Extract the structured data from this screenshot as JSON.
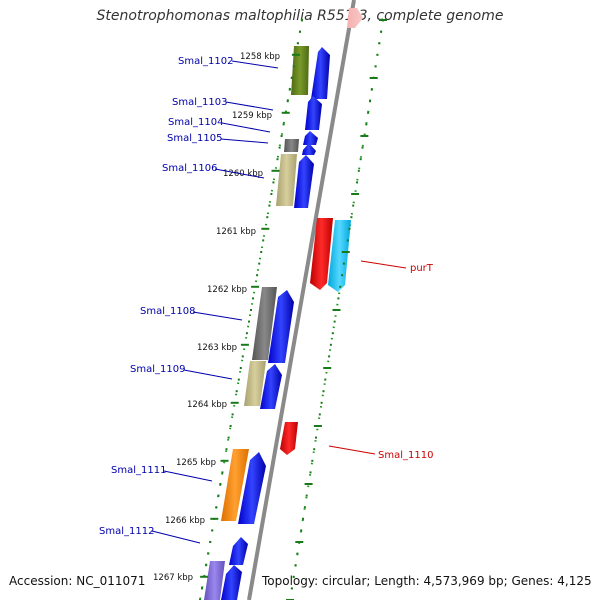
{
  "title": "Stenotrophomonas maltophilia R551-3, complete genome",
  "footer": {
    "accession": "Accession: NC_011071",
    "topology": "Topology: circular; Length: 4,573,969 bp; Genes: 4,125"
  },
  "colors": {
    "backbone": "#8a8a8a",
    "tick": "#1a7a1a",
    "left_label": "#0000aa",
    "right_label": "#cc0000"
  },
  "ticks": [
    "1258 kbp",
    "1259 kbp",
    "1260 kbp",
    "1261 kbp",
    "1262 kbp",
    "1263 kbp",
    "1264 kbp",
    "1265 kbp",
    "1266 kbp",
    "1267 kbp"
  ],
  "gene_labels_left": [
    "Smal_1102",
    "Smal_1103",
    "Smal_1104",
    "Smal_1105",
    "Smal_1106",
    "Smal_1108",
    "Smal_1109",
    "Smal_1111",
    "Smal_1112"
  ],
  "gene_labels_right": [
    "purT",
    "Smal_1110"
  ]
}
